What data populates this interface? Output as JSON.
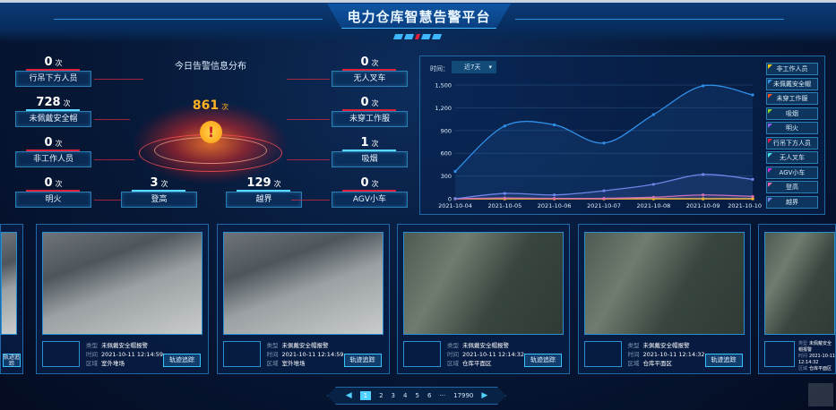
{
  "header": {
    "title": "电力仓库智慧告警平台"
  },
  "distribution": {
    "title": "今日告警信息分布",
    "unit": "次",
    "total": "861",
    "left": [
      {
        "label": "行吊下方人员",
        "count": "0"
      },
      {
        "label": "未佩戴安全帽",
        "count": "728"
      },
      {
        "label": "非工作人员",
        "count": "0"
      },
      {
        "label": "明火",
        "count": "0"
      }
    ],
    "bottom": [
      {
        "label": "登高",
        "count": "3"
      },
      {
        "label": "越界",
        "count": "129"
      }
    ],
    "right": [
      {
        "label": "无人叉车",
        "count": "0"
      },
      {
        "label": "未穿工作服",
        "count": "0"
      },
      {
        "label": "吸烟",
        "count": "1"
      },
      {
        "label": "AGV小车",
        "count": "0"
      }
    ]
  },
  "trend": {
    "time_label": "时间：",
    "time_selected": "近7天",
    "legend": [
      {
        "name": "非工作人员",
        "color": "#f5c518"
      },
      {
        "name": "未佩戴安全帽",
        "color": "#2f8fe8"
      },
      {
        "name": "未穿工作服",
        "color": "#f0502a"
      },
      {
        "name": "吸烟",
        "color": "#8ad22a"
      },
      {
        "name": "明火",
        "color": "#8a5cf0"
      },
      {
        "name": "行吊下方人员",
        "color": "#e81c3c"
      },
      {
        "name": "无人叉车",
        "color": "#3fe0e8"
      },
      {
        "name": "AGV小车",
        "color": "#d22ad2"
      },
      {
        "name": "登高",
        "color": "#f06aa8"
      },
      {
        "name": "越界",
        "color": "#7a82e8"
      }
    ]
  },
  "chart_data": {
    "type": "line",
    "x": [
      "2021-10-04",
      "2021-10-05",
      "2021-10-06",
      "2021-10-07",
      "2021-10-08",
      "2021-10-09",
      "2021-10-10"
    ],
    "ylim": [
      0,
      1500
    ],
    "yticks": [
      "0",
      "300",
      "600",
      "900",
      "1,200",
      "1,500"
    ],
    "grid": true,
    "legend_position": "right",
    "series": [
      {
        "name": "未佩戴安全帽",
        "color": "#2f8fe8",
        "values": [
          360,
          960,
          975,
          735,
          1110,
          1490,
          1370
        ]
      },
      {
        "name": "越界",
        "color": "#7a82e8",
        "values": [
          0,
          70,
          50,
          105,
          190,
          320,
          255
        ]
      },
      {
        "name": "登高",
        "color": "#f06aa8",
        "values": [
          0,
          10,
          5,
          5,
          20,
          50,
          30
        ]
      },
      {
        "name": "非工作人员",
        "color": "#f5c518",
        "values": [
          0,
          0,
          0,
          0,
          0,
          0,
          0
        ]
      },
      {
        "name": "未穿工作服",
        "color": "#f0502a",
        "values": [
          0,
          0,
          0,
          0,
          0,
          0,
          0
        ]
      },
      {
        "name": "吸烟",
        "color": "#8ad22a",
        "values": [
          0,
          0,
          0,
          0,
          0,
          0,
          1
        ]
      },
      {
        "name": "明火",
        "color": "#8a5cf0",
        "values": [
          0,
          0,
          0,
          0,
          0,
          0,
          0
        ]
      },
      {
        "name": "行吊下方人员",
        "color": "#e81c3c",
        "values": [
          0,
          0,
          0,
          0,
          0,
          0,
          0
        ]
      },
      {
        "name": "无人叉车",
        "color": "#3fe0e8",
        "values": [
          0,
          0,
          0,
          0,
          0,
          0,
          0
        ]
      },
      {
        "name": "AGV小车",
        "color": "#d22ad2",
        "values": [
          0,
          0,
          0,
          0,
          0,
          0,
          0
        ]
      }
    ]
  },
  "cards": {
    "labels": {
      "type": "类型",
      "time": "时间",
      "area": "区域",
      "track": "轨迹追踪"
    },
    "items": [
      {
        "type": "未佩戴安全帽报警",
        "time": "2021-10-11 12:14:59",
        "area": "室外堆场",
        "scene": "yard"
      },
      {
        "type": "未佩戴安全帽报警",
        "time": "2021-10-11 12:14:59",
        "area": "室外堆场",
        "scene": "yard"
      },
      {
        "type": "未佩戴安全帽报警",
        "time": "2021-10-11 12:14:32",
        "area": "仓库平面区",
        "scene": "ware"
      },
      {
        "type": "未佩戴安全帽报警",
        "time": "2021-10-11 12:14:32",
        "area": "仓库平面区",
        "scene": "ware"
      },
      {
        "type": "未佩戴安全帽报警",
        "time": "2021-10-11 12:14:32",
        "area": "仓库平面区",
        "scene": "ware"
      }
    ]
  },
  "pagination": {
    "pages": [
      "1",
      "2",
      "3",
      "4",
      "5",
      "6"
    ],
    "ellipsis": "···",
    "last": "17990",
    "current": "1"
  }
}
